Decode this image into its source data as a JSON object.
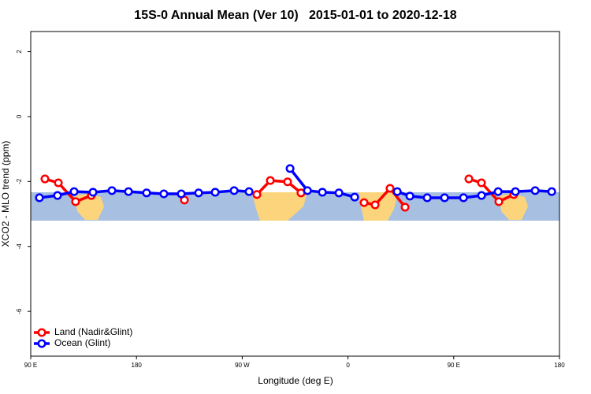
{
  "chart_data": {
    "type": "line",
    "title": "15S-0 Annual Mean (Ver 10)   2015-01-01 to 2020-12-18",
    "xlabel": "Longitude (deg E)",
    "ylabel": "XCO2 - MLO trend (ppm)",
    "xlim": [
      90,
      540
    ],
    "ylim": [
      -7.38,
      2.62
    ],
    "xticks": [
      {
        "value": 90,
        "label": "90 E"
      },
      {
        "value": 180,
        "label": "180"
      },
      {
        "value": 270,
        "label": "90 W"
      },
      {
        "value": 360,
        "label": "0"
      },
      {
        "value": 450,
        "label": "90 E"
      },
      {
        "value": 540,
        "label": "180"
      }
    ],
    "yticks": [
      2,
      0,
      -2,
      -4,
      -6
    ],
    "legend": "bottom-left",
    "series": [
      {
        "name": "Land (Nadir&Glint)",
        "color": "#ff0000",
        "x": [
          102.1,
          113.5,
          128.2,
          141.6,
          220.8,
          282.5,
          293.9,
          308.6,
          320,
          373.7,
          383.1,
          395.8,
          408.6,
          462.9,
          473.6,
          488.4,
          501.1
        ],
        "values": [
          -1.92,
          -2.04,
          -2.62,
          -2.43,
          -2.57,
          -2.4,
          -1.97,
          -2.01,
          -2.35,
          -2.65,
          -2.72,
          -2.21,
          -2.79,
          -1.92,
          -2.04,
          -2.62,
          -2.4
        ]
      },
      {
        "name": "Ocean (Glint)",
        "color": "#0000ff",
        "x": [
          97.4,
          112.8,
          126.9,
          143,
          159.1,
          173.2,
          188.6,
          203.3,
          218.1,
          232.9,
          247,
          263.1,
          275.8,
          310.7,
          325.5,
          338.2,
          352.3,
          365.7,
          401.9,
          412.7,
          427.4,
          442.2,
          458.3,
          473.7,
          487.8,
          502.5,
          519.3,
          533.4
        ],
        "values": [
          -2.5,
          -2.43,
          -2.31,
          -2.33,
          -2.28,
          -2.31,
          -2.35,
          -2.38,
          -2.38,
          -2.35,
          -2.33,
          -2.28,
          -2.31,
          -1.6,
          -2.28,
          -2.33,
          -2.35,
          -2.48,
          -2.31,
          -2.45,
          -2.5,
          -2.5,
          -2.5,
          -2.43,
          -2.31,
          -2.31,
          -2.28,
          -2.31
        ]
      }
    ]
  }
}
